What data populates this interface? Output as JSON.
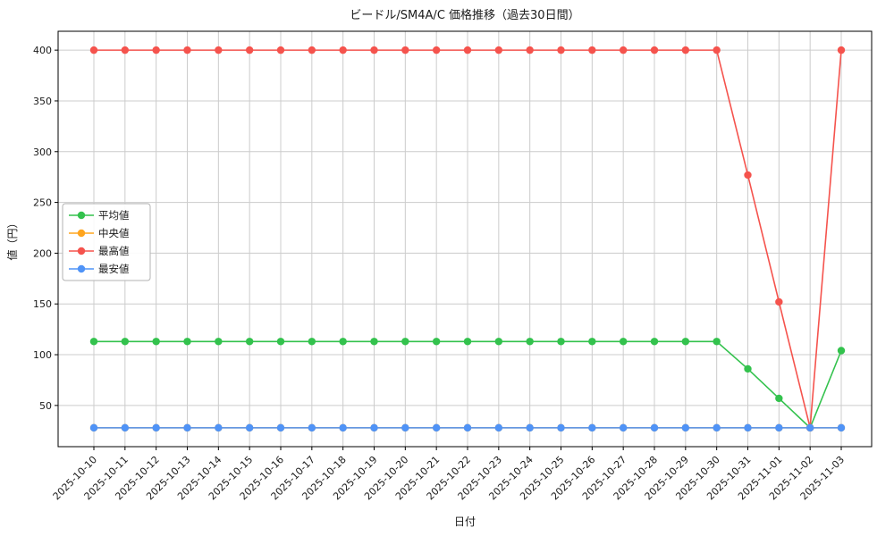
{
  "chart_data": {
    "type": "line",
    "title": "ビードル/SM4A/C 価格推移（過去30日間）",
    "xlabel": "日付",
    "ylabel": "値（円）",
    "x": [
      "2025-10-10",
      "2025-10-11",
      "2025-10-12",
      "2025-10-13",
      "2025-10-14",
      "2025-10-15",
      "2025-10-16",
      "2025-10-17",
      "2025-10-18",
      "2025-10-19",
      "2025-10-20",
      "2025-10-21",
      "2025-10-22",
      "2025-10-23",
      "2025-10-24",
      "2025-10-25",
      "2025-10-26",
      "2025-10-27",
      "2025-10-28",
      "2025-10-29",
      "2025-10-30",
      "2025-10-31",
      "2025-11-01",
      "2025-11-02",
      "2025-11-03"
    ],
    "series": [
      {
        "key": "average",
        "name": "平均値",
        "color": "#33c24d",
        "values": [
          113,
          113,
          113,
          113,
          113,
          113,
          113,
          113,
          113,
          113,
          113,
          113,
          113,
          113,
          113,
          113,
          113,
          113,
          113,
          113,
          113,
          86,
          57,
          28,
          104
        ]
      },
      {
        "key": "median",
        "name": "中央値",
        "color": "#ffa51e",
        "values": [
          28,
          28,
          28,
          28,
          28,
          28,
          28,
          28,
          28,
          28,
          28,
          28,
          28,
          28,
          28,
          28,
          28,
          28,
          28,
          28,
          28,
          28,
          28,
          28,
          28
        ]
      },
      {
        "key": "max",
        "name": "最高値",
        "color": "#f5534d",
        "values": [
          400,
          400,
          400,
          400,
          400,
          400,
          400,
          400,
          400,
          400,
          400,
          400,
          400,
          400,
          400,
          400,
          400,
          400,
          400,
          400,
          400,
          277,
          152,
          28,
          400
        ]
      },
      {
        "key": "min",
        "name": "最安値",
        "color": "#4f93f7",
        "values": [
          28,
          28,
          28,
          28,
          28,
          28,
          28,
          28,
          28,
          28,
          28,
          28,
          28,
          28,
          28,
          28,
          28,
          28,
          28,
          28,
          28,
          28,
          28,
          28,
          28
        ]
      }
    ],
    "yticks": [
      50,
      100,
      150,
      200,
      250,
      300,
      350,
      400
    ],
    "ylim": [
      9.4,
      418.6
    ],
    "grid": true,
    "legend_position": "center-left",
    "colors": {
      "grid": "#cccccc",
      "axis": "#000000",
      "background": "#ffffff",
      "legend_border": "#b3b3b3"
    }
  }
}
